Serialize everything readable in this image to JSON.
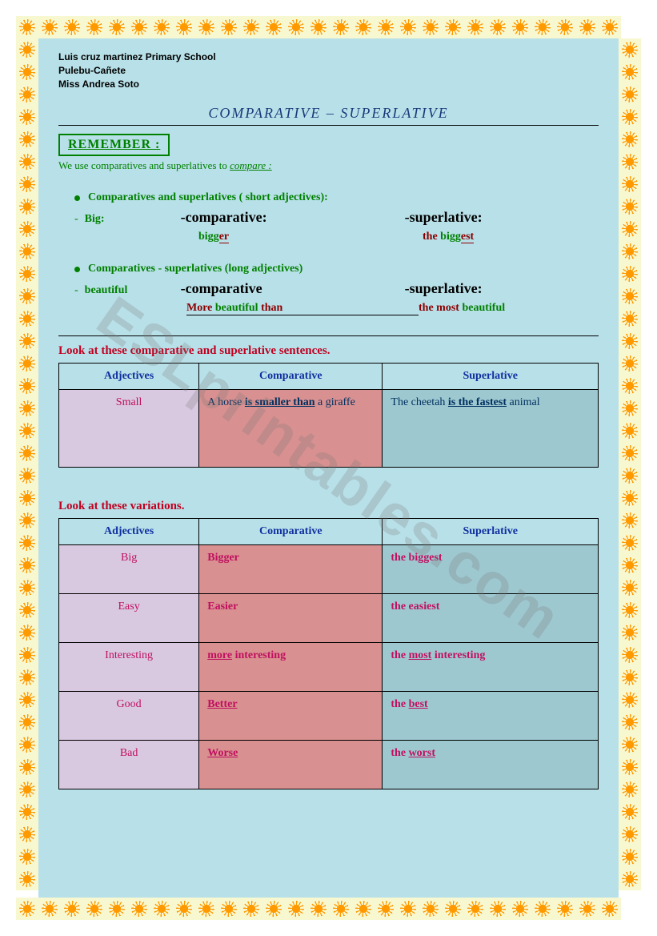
{
  "header": {
    "line1": "Luis cruz martinez Primary School",
    "line2": "Pulebu-Cañete",
    "line3": "Miss Andrea Soto"
  },
  "title": "COMPARATIVE – SUPERLATIVE",
  "remember": {
    "label": "REMEMBER :",
    "subtitle_pre": "We use comparatives and superlatives to ",
    "subtitle_emph": "compare :"
  },
  "section1": {
    "heading": "Comparatives and  superlatives ( short adjectives):",
    "adj_label": "Big:",
    "comp_label": "-comparative:",
    "sup_label": "-superlative:",
    "comp_example_base": "bigg",
    "comp_example_suffix": "er",
    "sup_example_prefix": "the ",
    "sup_example_base": "bigg",
    "sup_example_suffix": "est"
  },
  "section2": {
    "heading": "Comparatives - superlatives (long adjectives)",
    "adj_label": "beautiful",
    "comp_label": "-comparative",
    "sup_label": "-superlative:",
    "comp_more": "More ",
    "comp_word": "beautiful",
    "comp_than": " than",
    "sup_prefix": "the most ",
    "sup_word": "beautiful"
  },
  "table1": {
    "heading": "Look at these comparative and superlative sentences.",
    "headers": {
      "adj": "Adjectives",
      "comp": "Comparative",
      "sup": "Superlative"
    },
    "rows": [
      {
        "adj": "Small",
        "comp_pre": "A horse ",
        "comp_bold": "is smaller than",
        "comp_post": " a giraffe",
        "sup_pre": "The cheetah ",
        "sup_bold": "is the fastest",
        "sup_post": " animal"
      }
    ]
  },
  "table2": {
    "heading": "Look at these variations.",
    "headers": {
      "adj": "Adjectives",
      "comp": "Comparative",
      "sup": "Superlative"
    },
    "rows": [
      {
        "adj": "Big",
        "comp_html": "Bigger",
        "sup_html": "the biggest"
      },
      {
        "adj": "Easy",
        "comp_html": "Easier",
        "sup_html": "the easiest"
      },
      {
        "adj": "Interesting",
        "comp_html": "<span class='u'>more</span> interesting",
        "sup_html": "the <span class='u'>most</span> interesting"
      },
      {
        "adj": "Good",
        "comp_html": "<span class='u'>Better</span>",
        "sup_html": "the <span class='u'>best</span>"
      },
      {
        "adj": "Bad",
        "comp_html": "<span class='u'>Worse</span>",
        "sup_html": "the <span class='u'>worst</span>"
      }
    ]
  },
  "watermark": "ESLprintables.com",
  "styling": {
    "page_bg": "#b8e0e8",
    "green": "#008000",
    "darkred": "#8b0000",
    "heading_red": "#c00020",
    "table_header_blue": "#1030a0",
    "col_adj_bg": "#d8c8e0",
    "col_comp_bg": "#d89090",
    "col_sup_bg": "#9ec8d0",
    "cell_text": "#c01060",
    "sun_bg": "#f8f8d0",
    "sun_color": "#ff9900"
  }
}
